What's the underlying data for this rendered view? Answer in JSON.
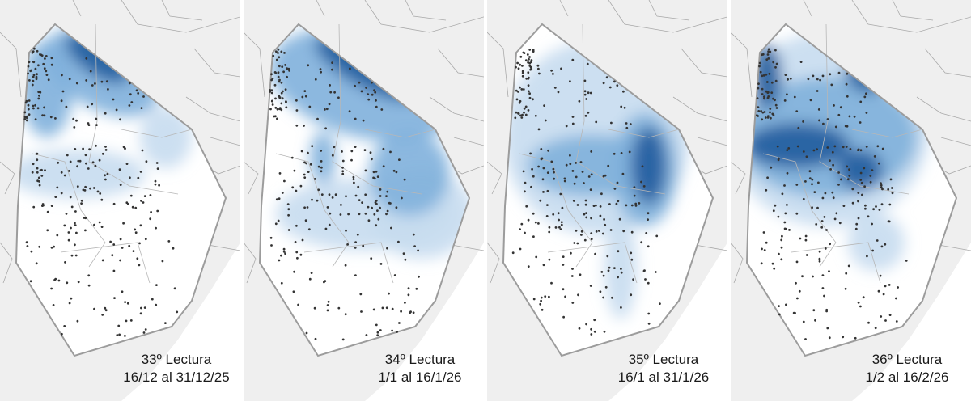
{
  "panels": [
    {
      "title": "33º Lectura",
      "period": "16/12 al 31/12/25",
      "anomaly_areas": [
        {
          "shape": "ellipse",
          "cx": 120,
          "cy": 72,
          "rx": 46,
          "ry": 20,
          "rot": 35,
          "level": 2
        },
        {
          "shape": "ellipse",
          "cx": 125,
          "cy": 90,
          "rx": 78,
          "ry": 44,
          "rot": 30,
          "level": 1
        },
        {
          "shape": "ellipse",
          "cx": 58,
          "cy": 110,
          "rx": 32,
          "ry": 60,
          "rot": 0,
          "level": 1
        },
        {
          "shape": "ellipse",
          "cx": 205,
          "cy": 170,
          "rx": 32,
          "ry": 38,
          "rot": 0,
          "level": 0
        },
        {
          "shape": "ellipse",
          "cx": 95,
          "cy": 215,
          "rx": 85,
          "ry": 30,
          "rot": 0,
          "level": 0
        }
      ]
    },
    {
      "title": "34º Lectura",
      "period": "1/1 al 16/1/26",
      "anomaly_areas": [
        {
          "shape": "ellipse",
          "cx": 150,
          "cy": 85,
          "rx": 70,
          "ry": 22,
          "rot": 30,
          "level": 2
        },
        {
          "shape": "ellipse",
          "cx": 150,
          "cy": 105,
          "rx": 120,
          "ry": 65,
          "rot": 15,
          "level": 1
        },
        {
          "shape": "ellipse",
          "cx": 205,
          "cy": 215,
          "rx": 50,
          "ry": 52,
          "rot": 0,
          "level": 1
        },
        {
          "shape": "ellipse",
          "cx": 98,
          "cy": 195,
          "rx": 16,
          "ry": 32,
          "rot": 0,
          "level": 1
        },
        {
          "shape": "ellipse",
          "cx": 220,
          "cy": 265,
          "rx": 65,
          "ry": 55,
          "rot": 0,
          "level": 0
        },
        {
          "shape": "ellipse",
          "cx": 150,
          "cy": 265,
          "rx": 110,
          "ry": 45,
          "rot": 0,
          "level": 0
        }
      ]
    },
    {
      "title": "35º Lectura",
      "period": "16/1 al 31/1/26",
      "anomaly_areas": [
        {
          "shape": "ellipse",
          "cx": 200,
          "cy": 205,
          "rx": 22,
          "ry": 48,
          "rot": 0,
          "level": 2
        },
        {
          "shape": "ellipse",
          "cx": 195,
          "cy": 210,
          "rx": 40,
          "ry": 70,
          "rot": 0,
          "level": 1
        },
        {
          "shape": "ellipse",
          "cx": 130,
          "cy": 205,
          "rx": 80,
          "ry": 38,
          "rot": 0,
          "level": 1
        },
        {
          "shape": "ellipse",
          "cx": 135,
          "cy": 170,
          "rx": 115,
          "ry": 120,
          "rot": 0,
          "level": 0
        },
        {
          "shape": "ellipse",
          "cx": 165,
          "cy": 330,
          "rx": 20,
          "ry": 65,
          "rot": 0,
          "level": 0
        }
      ]
    },
    {
      "title": "36º Lectura",
      "period": "1/2 al 16/2/26",
      "anomaly_areas": [
        {
          "shape": "ellipse",
          "cx": 82,
          "cy": 180,
          "rx": 65,
          "ry": 28,
          "rot": 0,
          "level": 2
        },
        {
          "shape": "ellipse",
          "cx": 160,
          "cy": 210,
          "rx": 28,
          "ry": 25,
          "rot": 0,
          "level": 2
        },
        {
          "shape": "ellipse",
          "cx": 165,
          "cy": 95,
          "rx": 25,
          "ry": 18,
          "rot": 30,
          "level": 2
        },
        {
          "shape": "ellipse",
          "cx": 45,
          "cy": 95,
          "rx": 18,
          "ry": 40,
          "rot": 0,
          "level": 2
        },
        {
          "shape": "ellipse",
          "cx": 120,
          "cy": 170,
          "rx": 110,
          "ry": 75,
          "rot": 0,
          "level": 1
        },
        {
          "shape": "ellipse",
          "cx": 120,
          "cy": 160,
          "rx": 125,
          "ry": 120,
          "rot": 0,
          "level": 0
        },
        {
          "shape": "ellipse",
          "cx": 180,
          "cy": 300,
          "rx": 35,
          "ry": 35,
          "rot": 0,
          "level": 0
        }
      ]
    }
  ],
  "colors": {
    "ocean": "#ffffff",
    "land": "#efefef",
    "admin_borders": "#a9a9a9",
    "region_fill": "#ffffff",
    "region_outline": "#9c9c9c",
    "station_dots": "#333333",
    "anomaly_levels": [
      "#c6dcef",
      "#7fb0dc",
      "#1f5c9d"
    ],
    "caption_text": "#1a1a1a"
  }
}
